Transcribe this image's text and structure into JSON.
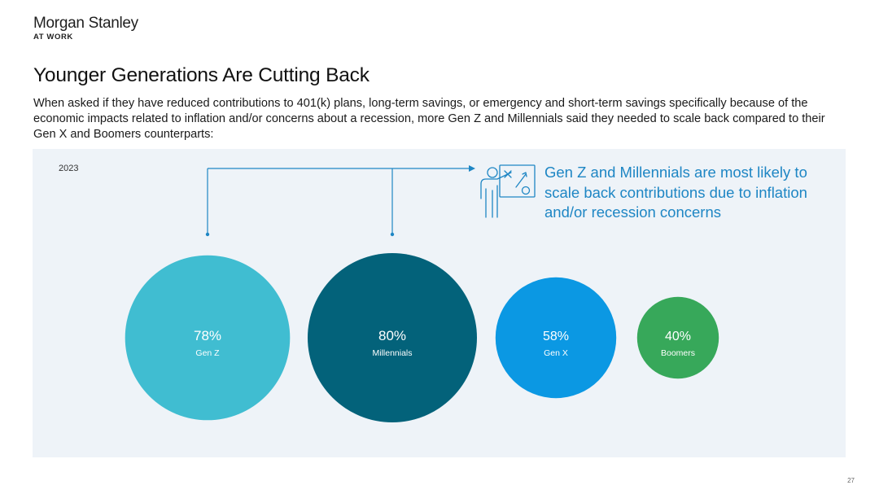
{
  "logo": {
    "name": "Morgan Stanley",
    "sub": "AT WORK"
  },
  "title": "Younger Generations Are Cutting Back",
  "subtitle": "When asked if they have reduced contributions to 401(k) plans, long-term savings, or emergency and short-term savings specifically because of the economic impacts related to inflation and/or concerns about a recession, more Gen Z and Millennials said they needed to scale back compared to their Gen X and Boomers counterparts:",
  "year": "2023",
  "callout": "Gen Z and Millennials are most likely to scale back contributions due to inflation and/or recession concerns",
  "icon": "presentation-teacher-icon",
  "page_number": "27",
  "chart_data": {
    "type": "bubble",
    "unit": "%",
    "categories": [
      "Gen Z",
      "Millennials",
      "Gen X",
      "Boomers"
    ],
    "values": [
      78,
      80,
      58,
      40
    ],
    "labels": [
      "78%",
      "80%",
      "58%",
      "40%"
    ],
    "colors": [
      "#40bdd1",
      "#03627a",
      "#0b98e3",
      "#37a85a"
    ],
    "highlighted": [
      "Gen Z",
      "Millennials"
    ]
  }
}
